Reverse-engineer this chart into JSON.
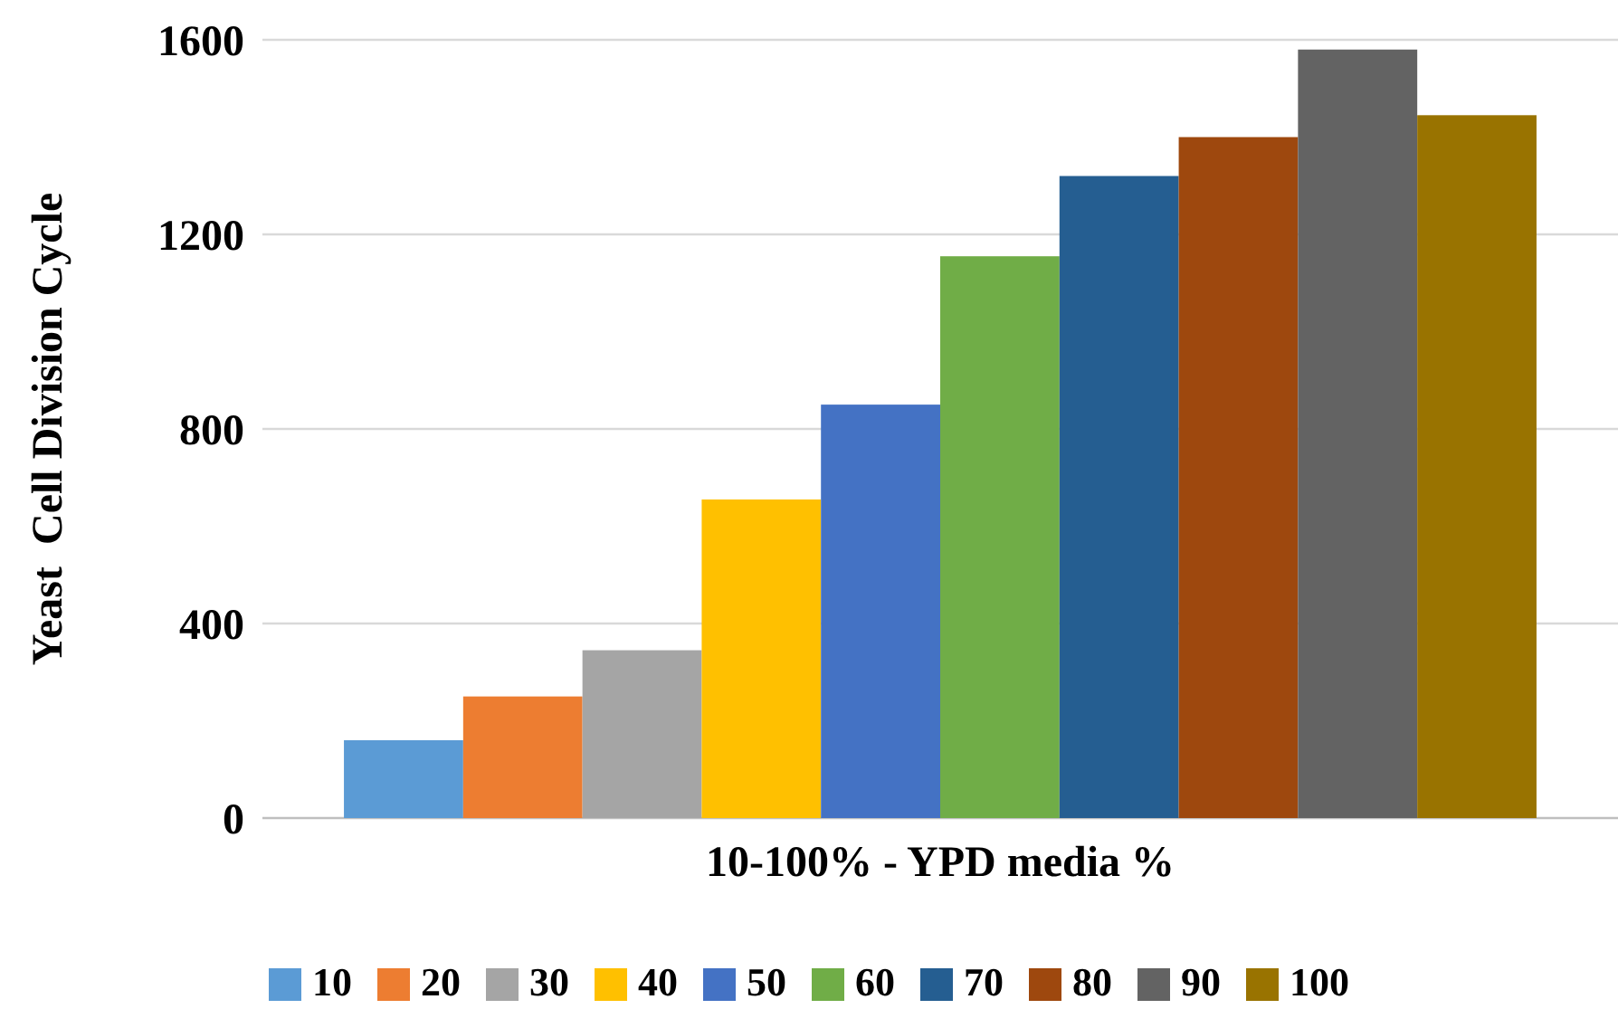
{
  "chart_data": {
    "type": "bar",
    "xlabel": "10-100% - YPD media %",
    "ylabel": "Yeast  Cell Division Cycle",
    "categories": [
      null
    ],
    "series": [
      {
        "name": "10",
        "color": "#5b9bd5",
        "values": [
          160
        ]
      },
      {
        "name": "20",
        "color": "#ed7d31",
        "values": [
          250
        ]
      },
      {
        "name": "30",
        "color": "#a5a5a5",
        "values": [
          345
        ]
      },
      {
        "name": "40",
        "color": "#ffc000",
        "values": [
          655
        ]
      },
      {
        "name": "50",
        "color": "#4472c4",
        "values": [
          850
        ]
      },
      {
        "name": "60",
        "color": "#70ad47",
        "values": [
          1155
        ]
      },
      {
        "name": "70",
        "color": "#255e91",
        "values": [
          1320
        ]
      },
      {
        "name": "80",
        "color": "#9e480e",
        "values": [
          1400
        ]
      },
      {
        "name": "90",
        "color": "#636363",
        "values": [
          1580
        ]
      },
      {
        "name": "100",
        "color": "#997300",
        "values": [
          1445
        ]
      }
    ],
    "ylim": [
      0,
      1600
    ],
    "yticks": [
      0,
      400,
      800,
      1200,
      1600
    ],
    "grid": "y",
    "legend": "bottom"
  }
}
